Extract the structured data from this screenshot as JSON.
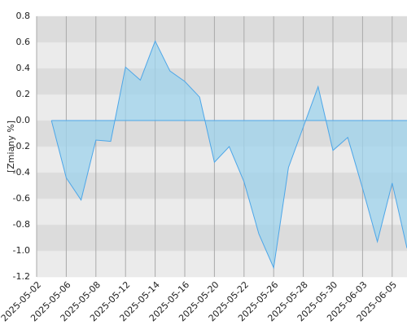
{
  "chart_data": {
    "type": "area",
    "y_label": "[Zmiany %]",
    "x": [
      "2025-05-05",
      "2025-05-06",
      "2025-05-07",
      "2025-05-08",
      "2025-05-09",
      "2025-05-12",
      "2025-05-13",
      "2025-05-14",
      "2025-05-15",
      "2025-05-16",
      "2025-05-19",
      "2025-05-20",
      "2025-05-21",
      "2025-05-22",
      "2025-05-23",
      "2025-05-26",
      "2025-05-27",
      "2025-05-28",
      "2025-05-29",
      "2025-05-30",
      "2025-06-02",
      "2025-06-03",
      "2025-06-04",
      "2025-06-05",
      "2025-06-06"
    ],
    "series": [
      {
        "color": "#4da6e8",
        "values": [
          0.0,
          -0.44,
          -0.61,
          -0.15,
          -0.16,
          0.41,
          0.31,
          0.61,
          0.38,
          0.3,
          0.18,
          -0.32,
          -0.2,
          -0.47,
          -0.87,
          -1.13,
          -0.36,
          -0.05,
          0.26,
          -0.23,
          -0.13,
          -0.52,
          -0.93,
          -0.48,
          -0.98
        ]
      }
    ],
    "xlim": [
      "2025-05-02",
      "2025-06-06"
    ],
    "xticks": [
      "2025-05-02",
      "2025-05-06",
      "2025-05-08",
      "2025-05-12",
      "2025-05-14",
      "2025-05-16",
      "2025-05-20",
      "2025-05-22",
      "2025-05-26",
      "2025-05-28",
      "2025-05-30",
      "2025-06-03",
      "2025-06-05"
    ],
    "ylim": [
      -1.2,
      0.8
    ],
    "yticks": [
      0.8,
      0.6,
      0.4,
      0.2,
      {
        "value": 0,
        "label": "0.0"
      },
      -0.2,
      -0.4,
      -0.6,
      -0.8,
      {
        "value": -1,
        "label": "-1.0"
      },
      -1.2
    ],
    "grid": true
  }
}
